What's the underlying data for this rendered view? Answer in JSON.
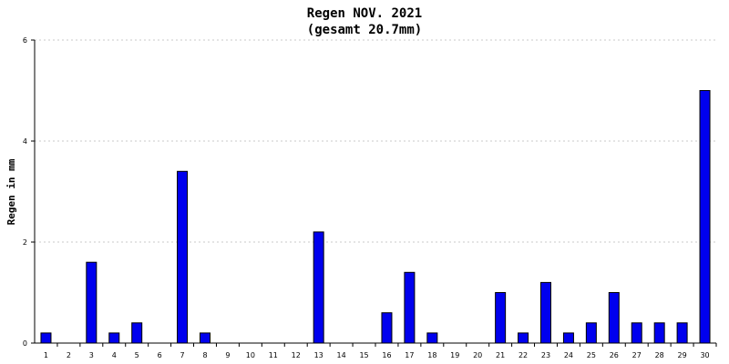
{
  "chart_data": {
    "type": "bar",
    "title": "Regen NOV. 2021",
    "subtitle": "(gesamt 20.7mm)",
    "xlabel": "",
    "ylabel": "Regen in mm",
    "ylim": [
      0,
      6
    ],
    "yticks": [
      "0",
      "2",
      "4",
      "6"
    ],
    "grid": true,
    "colors": {
      "bar": "#0000ee",
      "grid": "#c8c8c8"
    },
    "categories": [
      "1",
      "2",
      "3",
      "4",
      "5",
      "6",
      "7",
      "8",
      "9",
      "10",
      "11",
      "12",
      "13",
      "14",
      "15",
      "16",
      "17",
      "18",
      "19",
      "20",
      "21",
      "22",
      "23",
      "24",
      "25",
      "26",
      "27",
      "28",
      "29",
      "30"
    ],
    "values": [
      0.2,
      0,
      1.6,
      0.2,
      0.4,
      0,
      3.4,
      0.2,
      0,
      0,
      0,
      0,
      2.2,
      0,
      0,
      0.6,
      1.4,
      0.2,
      0,
      0,
      1.0,
      0.2,
      1.2,
      0.2,
      0.4,
      1.0,
      0.4,
      0.4,
      0.4,
      5.0
    ]
  }
}
